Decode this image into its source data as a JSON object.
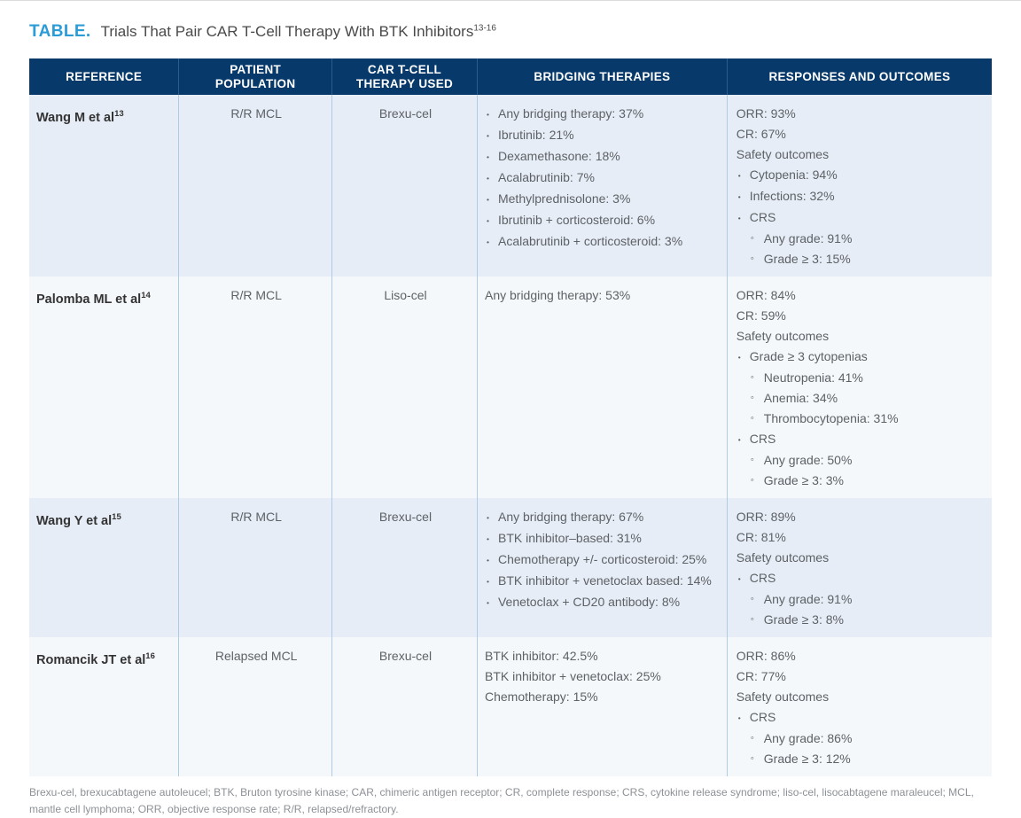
{
  "title": {
    "label": "TABLE.",
    "text": "Trials That Pair CAR T-Cell Therapy With BTK Inhibitors",
    "superscript": "13-16"
  },
  "colors": {
    "accent_blue": "#2c9cd7",
    "header_bg": "#073a6b",
    "row_stripe_dark": "#e7edf6",
    "row_stripe_light": "#f4f8fb",
    "column_divider": "#aecde5",
    "body_text": "#5d6266"
  },
  "table": {
    "columns": [
      {
        "id": "reference",
        "label": "REFERENCE"
      },
      {
        "id": "population",
        "label": "PATIENT\nPOPULATION"
      },
      {
        "id": "therapy",
        "label": "CAR T-CELL\nTHERAPY USED"
      },
      {
        "id": "bridging",
        "label": "BRIDGING THERAPIES"
      },
      {
        "id": "responses",
        "label": "RESPONSES AND OUTCOMES"
      }
    ],
    "rows": [
      {
        "reference": {
          "text": "Wang M et al",
          "sup": "13"
        },
        "population": "R/R MCL",
        "therapy": "Brexu-cel",
        "bridging": [
          {
            "style": "bullet",
            "text": "Any bridging therapy: 37%"
          },
          {
            "style": "bullet",
            "text": "Ibrutinib: 21%"
          },
          {
            "style": "bullet",
            "text": "Dexamethasone: 18%"
          },
          {
            "style": "bullet",
            "text": "Acalabrutinib: 7%"
          },
          {
            "style": "bullet",
            "text": "Methylprednisolone: 3%"
          },
          {
            "style": "bullet",
            "text": "Ibrutinib + corticosteroid: 6%"
          },
          {
            "style": "bullet",
            "text": "Acalabrutinib + corticosteroid: 3%"
          }
        ],
        "responses": [
          {
            "style": "plain",
            "text": "ORR: 93%"
          },
          {
            "style": "plain",
            "text": "CR: 67%"
          },
          {
            "style": "plain",
            "text": "Safety outcomes"
          },
          {
            "style": "bullet",
            "text": "Cytopenia: 94%"
          },
          {
            "style": "bullet",
            "text": "Infections: 32%"
          },
          {
            "style": "bullet",
            "text": "CRS"
          },
          {
            "style": "sub",
            "text": "Any grade: 91%"
          },
          {
            "style": "sub",
            "text": "Grade ≥ 3: 15%"
          }
        ]
      },
      {
        "reference": {
          "text": "Palomba ML et al",
          "sup": "14"
        },
        "population": "R/R MCL",
        "therapy": "Liso-cel",
        "bridging": [
          {
            "style": "plain",
            "text": "Any bridging therapy: 53%"
          }
        ],
        "responses": [
          {
            "style": "plain",
            "text": "ORR: 84%"
          },
          {
            "style": "plain",
            "text": "CR: 59%"
          },
          {
            "style": "plain",
            "text": "Safety outcomes"
          },
          {
            "style": "bullet",
            "text": "Grade ≥ 3 cytopenias"
          },
          {
            "style": "sub",
            "text": "Neutropenia: 41%"
          },
          {
            "style": "sub",
            "text": "Anemia: 34%"
          },
          {
            "style": "sub",
            "text": "Thrombocytopenia: 31%"
          },
          {
            "style": "bullet",
            "text": "CRS"
          },
          {
            "style": "sub",
            "text": "Any grade: 50%"
          },
          {
            "style": "sub",
            "text": "Grade ≥ 3: 3%"
          }
        ]
      },
      {
        "reference": {
          "text": "Wang Y et al",
          "sup": "15"
        },
        "population": "R/R MCL",
        "therapy": "Brexu-cel",
        "bridging": [
          {
            "style": "bullet",
            "text": "Any bridging therapy: 67%"
          },
          {
            "style": "bullet",
            "text": "BTK inhibitor–based: 31%"
          },
          {
            "style": "bullet",
            "text": "Chemotherapy +/- corticosteroid: 25%"
          },
          {
            "style": "bullet",
            "text": "BTK inhibitor + venetoclax based: 14%"
          },
          {
            "style": "bullet",
            "text": "Venetoclax + CD20 antibody: 8%"
          }
        ],
        "responses": [
          {
            "style": "plain",
            "text": "ORR: 89%"
          },
          {
            "style": "plain",
            "text": "CR: 81%"
          },
          {
            "style": "plain",
            "text": "Safety outcomes"
          },
          {
            "style": "bullet",
            "text": "CRS"
          },
          {
            "style": "sub",
            "text": "Any grade: 91%"
          },
          {
            "style": "sub",
            "text": "Grade ≥ 3: 8%"
          }
        ]
      },
      {
        "reference": {
          "text": "Romancik JT et al",
          "sup": "16"
        },
        "population": "Relapsed MCL",
        "therapy": "Brexu-cel",
        "bridging": [
          {
            "style": "plain",
            "text": "BTK inhibitor: 42.5%"
          },
          {
            "style": "plain",
            "text": "BTK inhibitor + venetoclax: 25%"
          },
          {
            "style": "plain",
            "text": "Chemotherapy: 15%"
          }
        ],
        "responses": [
          {
            "style": "plain",
            "text": "ORR: 86%"
          },
          {
            "style": "plain",
            "text": "CR: 77%"
          },
          {
            "style": "plain",
            "text": "Safety outcomes"
          },
          {
            "style": "bullet",
            "text": "CRS"
          },
          {
            "style": "sub",
            "text": "Any grade: 86%"
          },
          {
            "style": "sub",
            "text": "Grade ≥ 3: 12%"
          }
        ]
      }
    ]
  },
  "footnote": {
    "text": "Brexu-cel, brexucabtagene autoleucel; BTK, Bruton tyrosine kinase; CAR, chimeric antigen receptor; CR, complete response; CRS, cytokine release syndrome; liso-cel, lisocabtagene maraleucel; MCL, mantle cell lymphoma; ORR, objective response rate; R/R, relapsed/refractory."
  }
}
